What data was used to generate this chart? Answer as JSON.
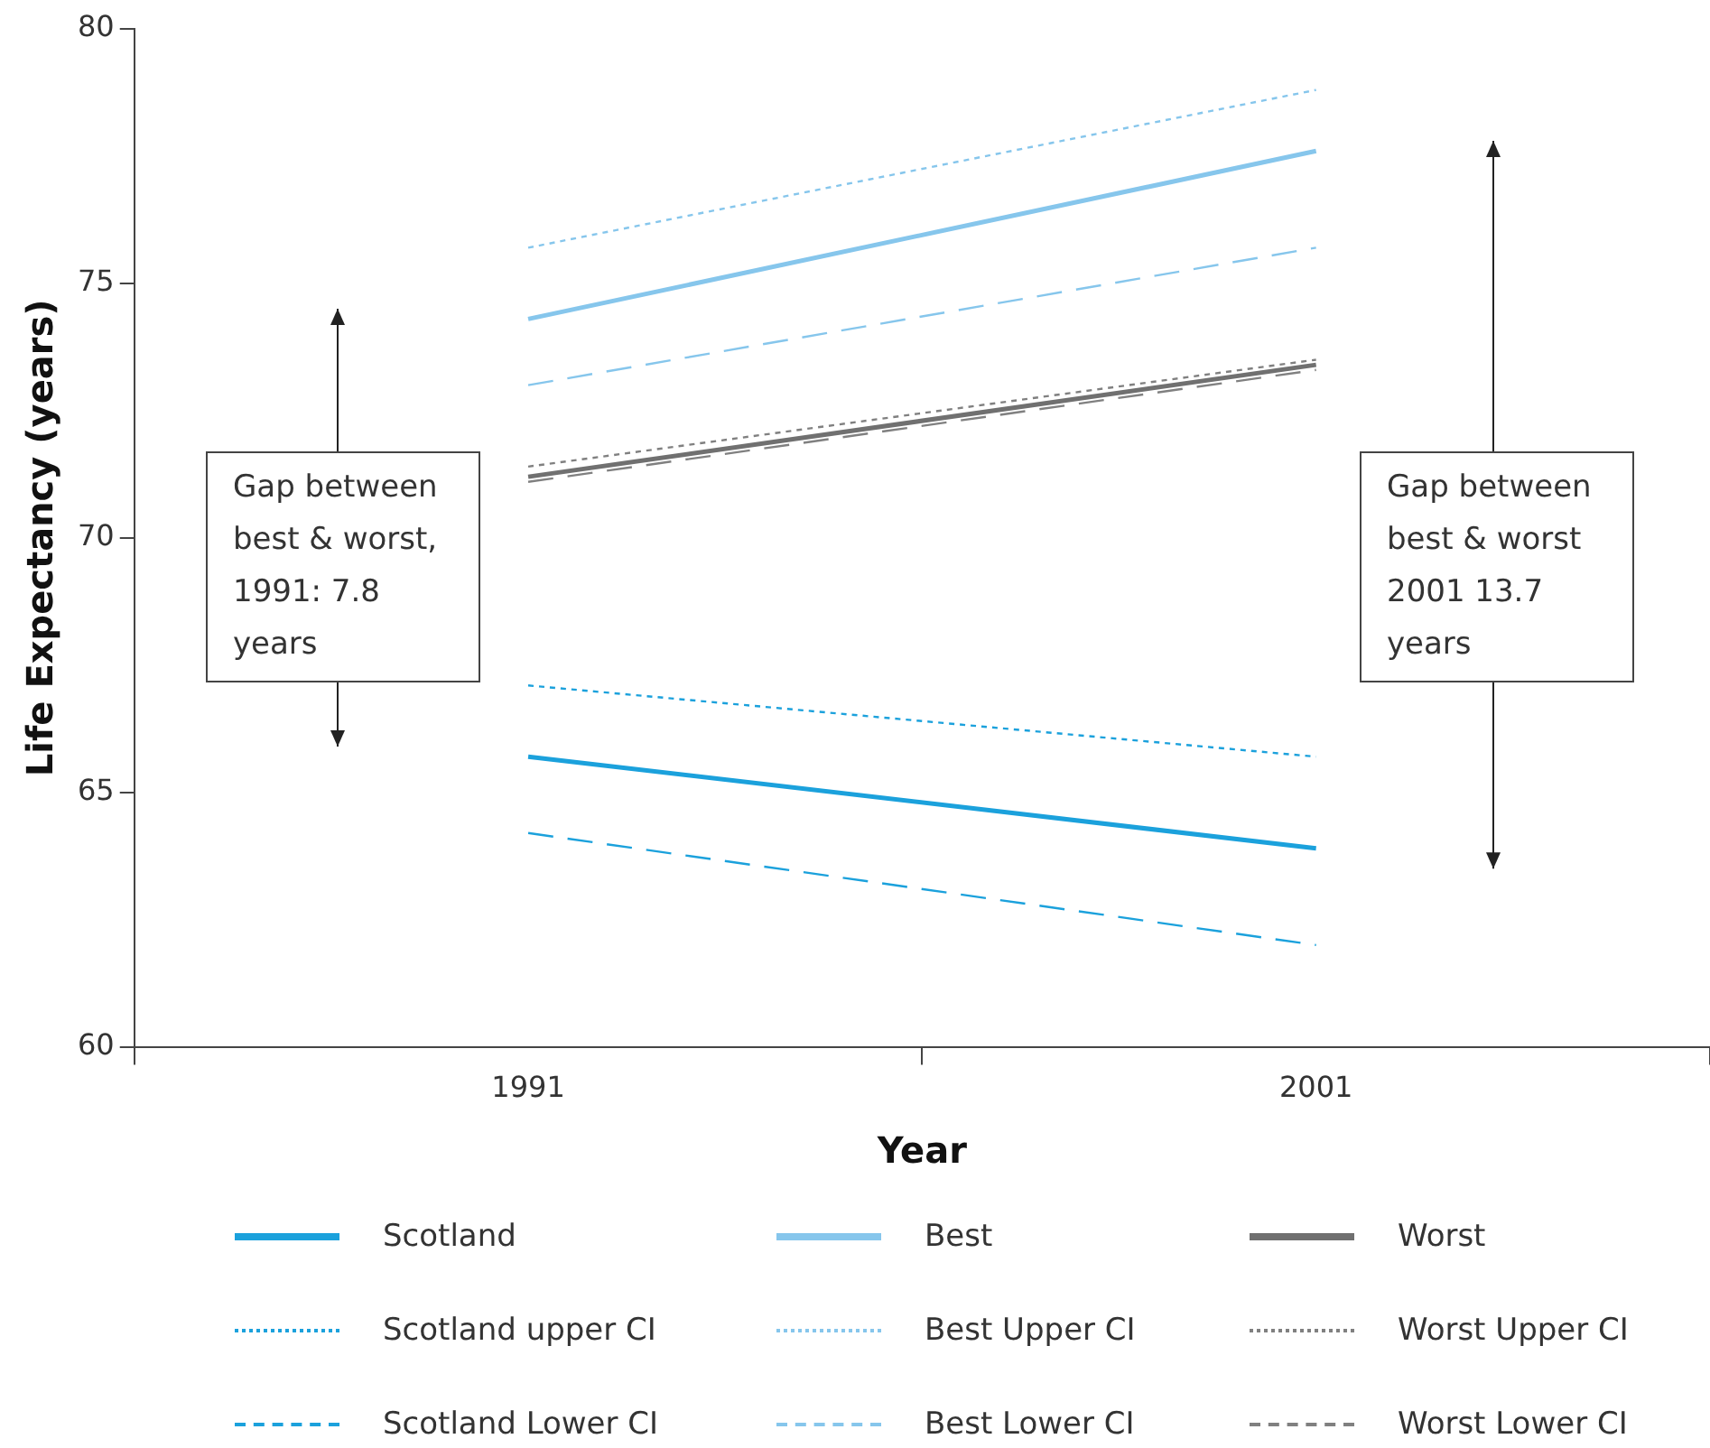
{
  "chart_data": {
    "type": "line",
    "xlabel": "Year",
    "ylabel": "Life Expectancy (years)",
    "categories": [
      "1991",
      "2001"
    ],
    "ylim": [
      60,
      80
    ],
    "yticks": [
      60,
      65,
      70,
      75,
      80
    ],
    "grid": false,
    "legend": "bottom",
    "marker": "none",
    "annotations": [
      "Gap between best & worst, 1991: 7.8 years",
      "Gap between best & worst 2001 13.7 years"
    ],
    "series": [
      {
        "name": "Scotland",
        "color": "#1ba1dc",
        "line_style": "solid",
        "values": [
          65.7,
          63.9
        ]
      },
      {
        "name": "Best",
        "color": "#86c6ec",
        "line_style": "solid",
        "values": [
          74.3,
          77.6
        ]
      },
      {
        "name": "Worst",
        "color": "#707070",
        "line_style": "solid",
        "values": [
          71.2,
          73.4
        ]
      },
      {
        "name": "Scotland upper CI",
        "color": "#1ba1dc",
        "line_style": "dotted",
        "values": [
          67.1,
          65.7
        ]
      },
      {
        "name": "Best Upper CI",
        "color": "#86c6ec",
        "line_style": "dotted",
        "values": [
          75.7,
          78.8
        ]
      },
      {
        "name": "Worst Upper CI",
        "color": "#808080",
        "line_style": "dotted",
        "values": [
          71.4,
          73.5
        ]
      },
      {
        "name": "Scotland Lower CI",
        "color": "#1ba1dc",
        "line_style": "dashed",
        "values": [
          64.2,
          62.0
        ]
      },
      {
        "name": "Best Lower CI",
        "color": "#86c6ec",
        "line_style": "dashed",
        "values": [
          73.0,
          75.7
        ]
      },
      {
        "name": "Worst Lower CI",
        "color": "#808080",
        "line_style": "dashed",
        "values": [
          71.1,
          73.3
        ]
      }
    ]
  }
}
